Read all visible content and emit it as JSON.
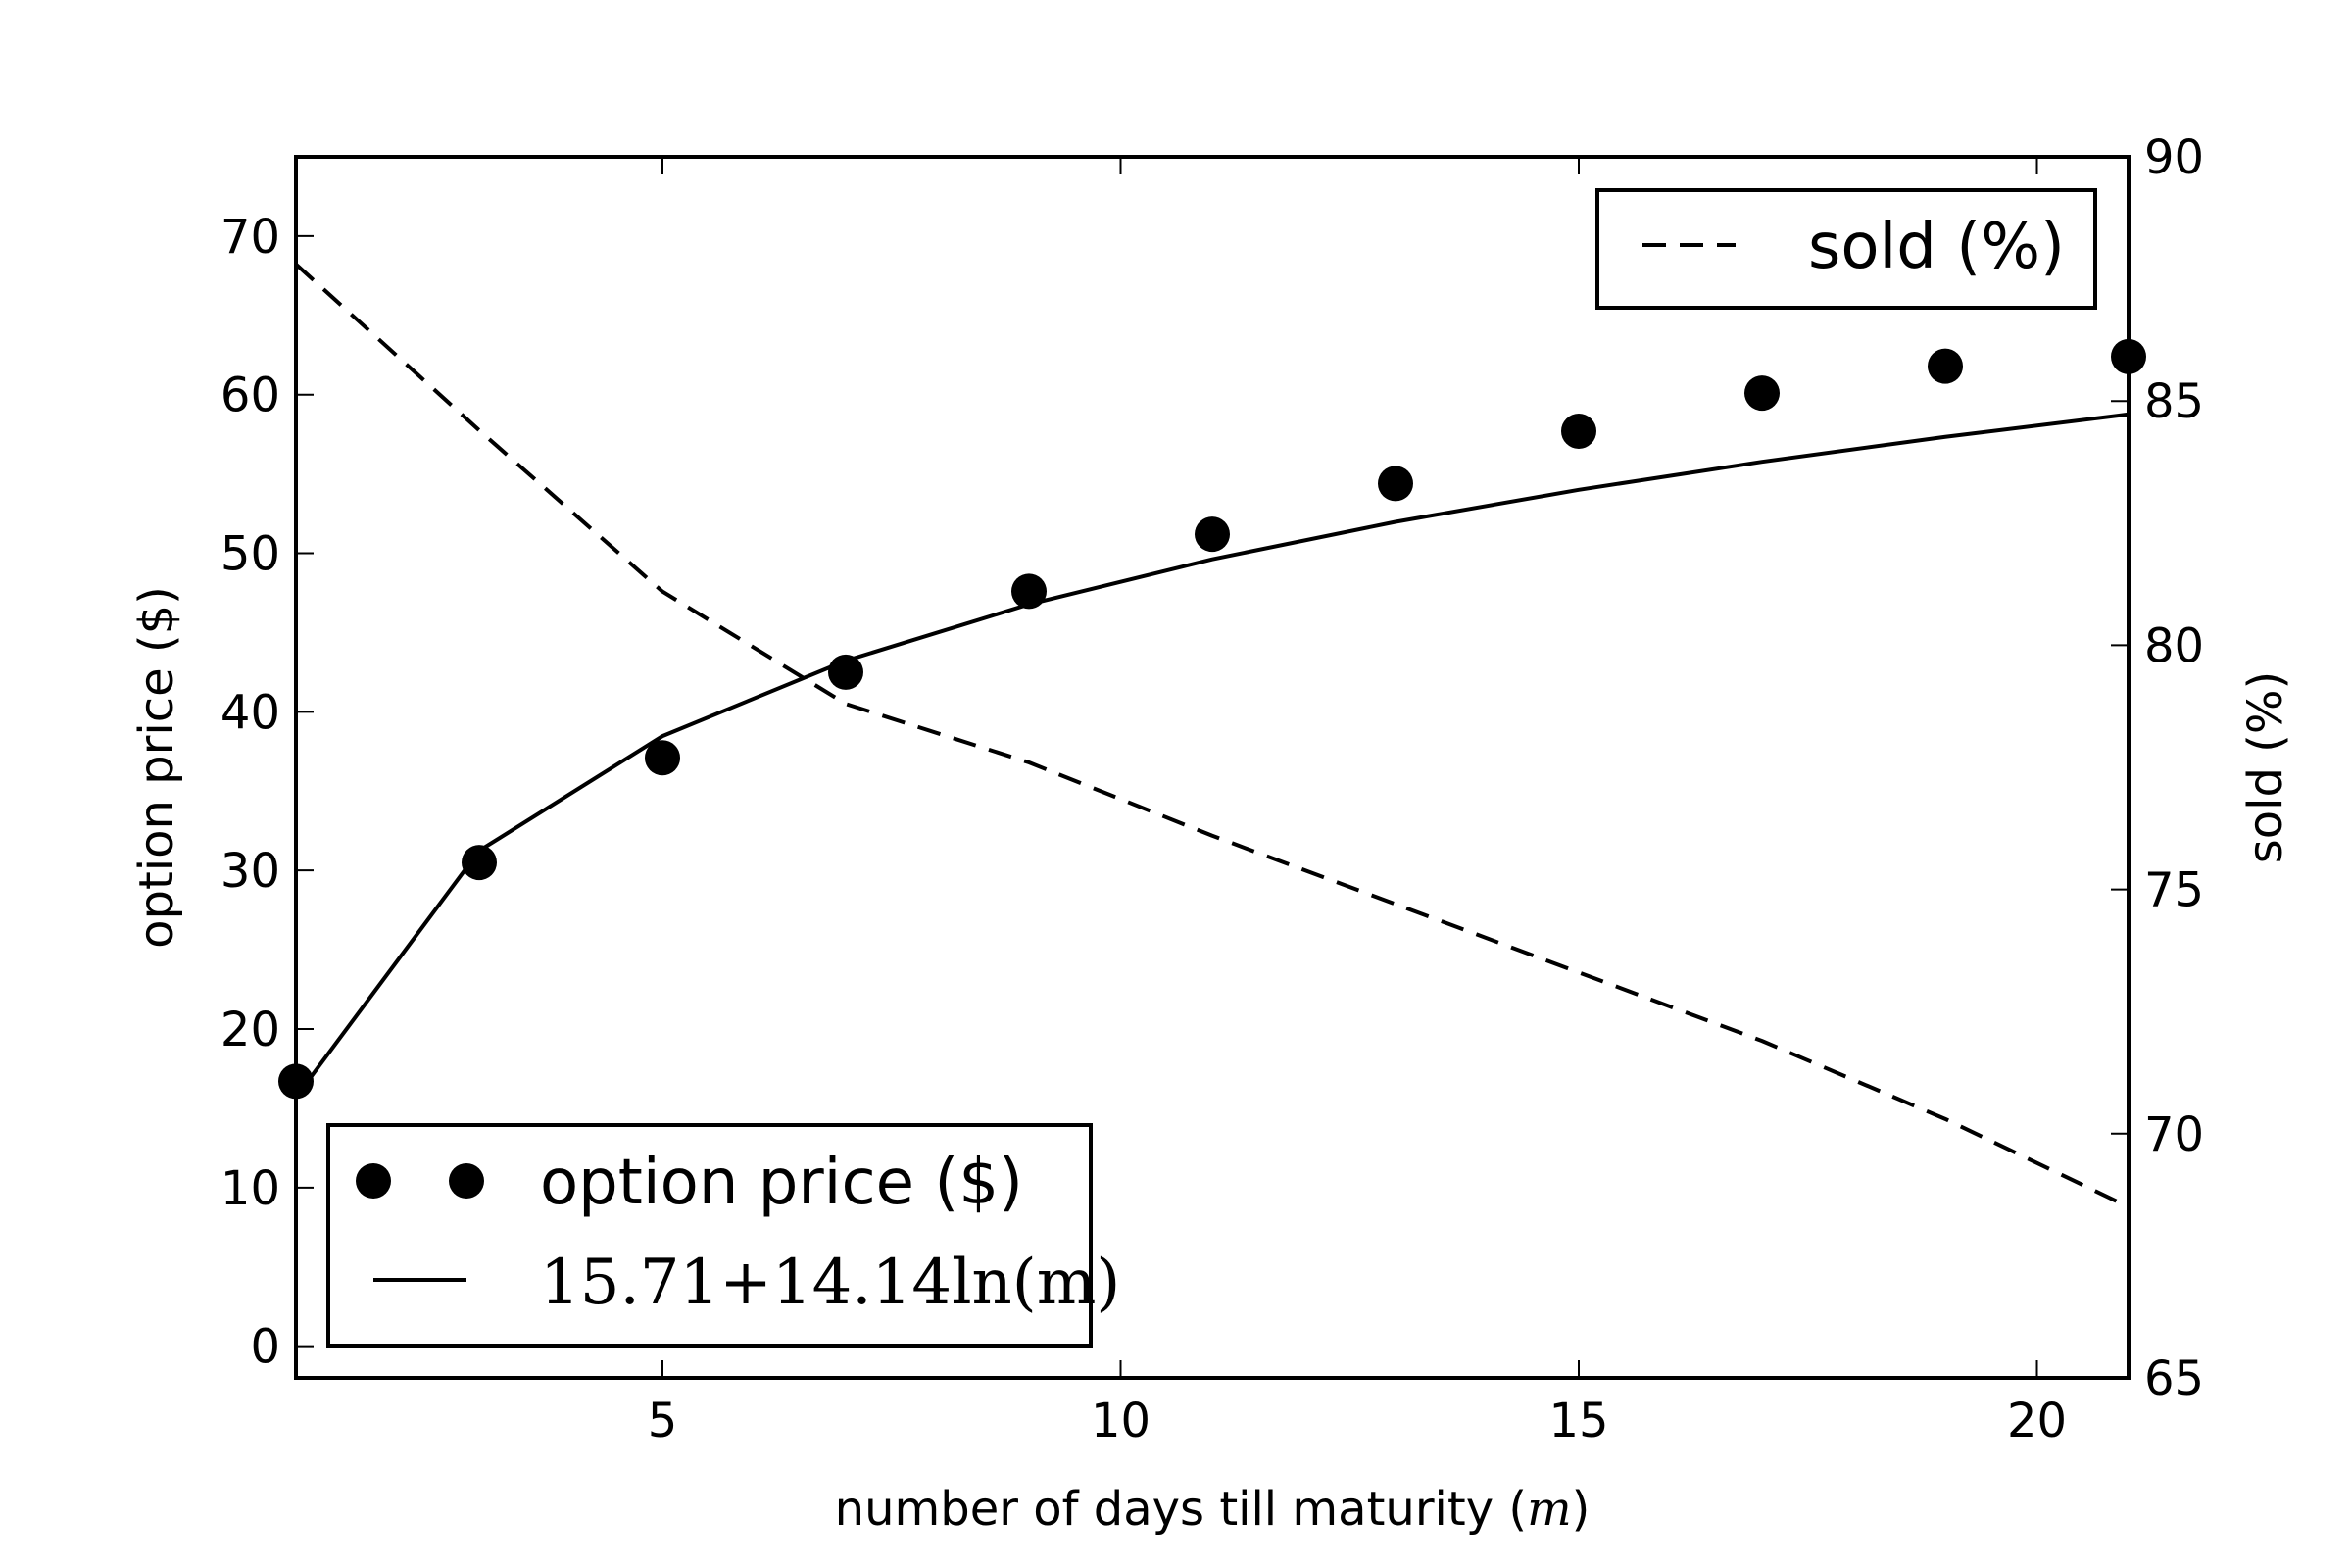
{
  "chart_data": {
    "type": "line",
    "xlabel": "number of days till maturity (",
    "xlabel_var": "m",
    "xlabel_close": ")",
    "ylabel_left": "option price ($)",
    "ylabel_right": "sold (%)",
    "xlim": [
      1,
      21
    ],
    "ylim_left": [
      -2,
      75
    ],
    "ylim_right": [
      65,
      90
    ],
    "xticks": [
      5,
      10,
      15,
      20
    ],
    "yticks_left": [
      0,
      10,
      20,
      30,
      40,
      50,
      60,
      70
    ],
    "yticks_right": [
      65,
      70,
      75,
      80,
      85,
      90
    ],
    "grid": false,
    "series": [
      {
        "name": "option price ($)",
        "style": "markers",
        "axis": "left",
        "color": "#000000",
        "x": [
          1,
          3,
          5,
          7,
          9,
          11,
          13,
          15,
          17,
          19,
          21
        ],
        "y": [
          16.7,
          30.5,
          37.1,
          42.5,
          47.6,
          51.2,
          54.4,
          57.7,
          60.1,
          61.8,
          62.4
        ]
      },
      {
        "name": "15.71+14.14ln(m)",
        "style": "solid",
        "axis": "left",
        "color": "#000000",
        "x": [
          1,
          3,
          5,
          7,
          9,
          11,
          13,
          15,
          17,
          19,
          21
        ],
        "y": [
          15.71,
          31.24,
          38.47,
          43.22,
          46.78,
          49.62,
          51.98,
          54.0,
          55.77,
          57.34,
          58.76
        ]
      },
      {
        "name": "sold (%)",
        "style": "dashed",
        "axis": "right",
        "color": "#000000",
        "x": [
          1,
          3,
          5,
          7,
          9,
          11,
          13,
          15,
          17,
          19,
          21
        ],
        "y": [
          87.8,
          84.4,
          81.1,
          78.8,
          77.6,
          76.1,
          74.7,
          73.3,
          71.9,
          70.3,
          68.5
        ]
      }
    ],
    "legend_left": {
      "placement": "lower-left",
      "entries": [
        "option price ($)",
        "15.71+14.14ln(m)"
      ]
    },
    "legend_right": {
      "placement": "upper-right",
      "entries": [
        "sold (%)"
      ]
    }
  }
}
